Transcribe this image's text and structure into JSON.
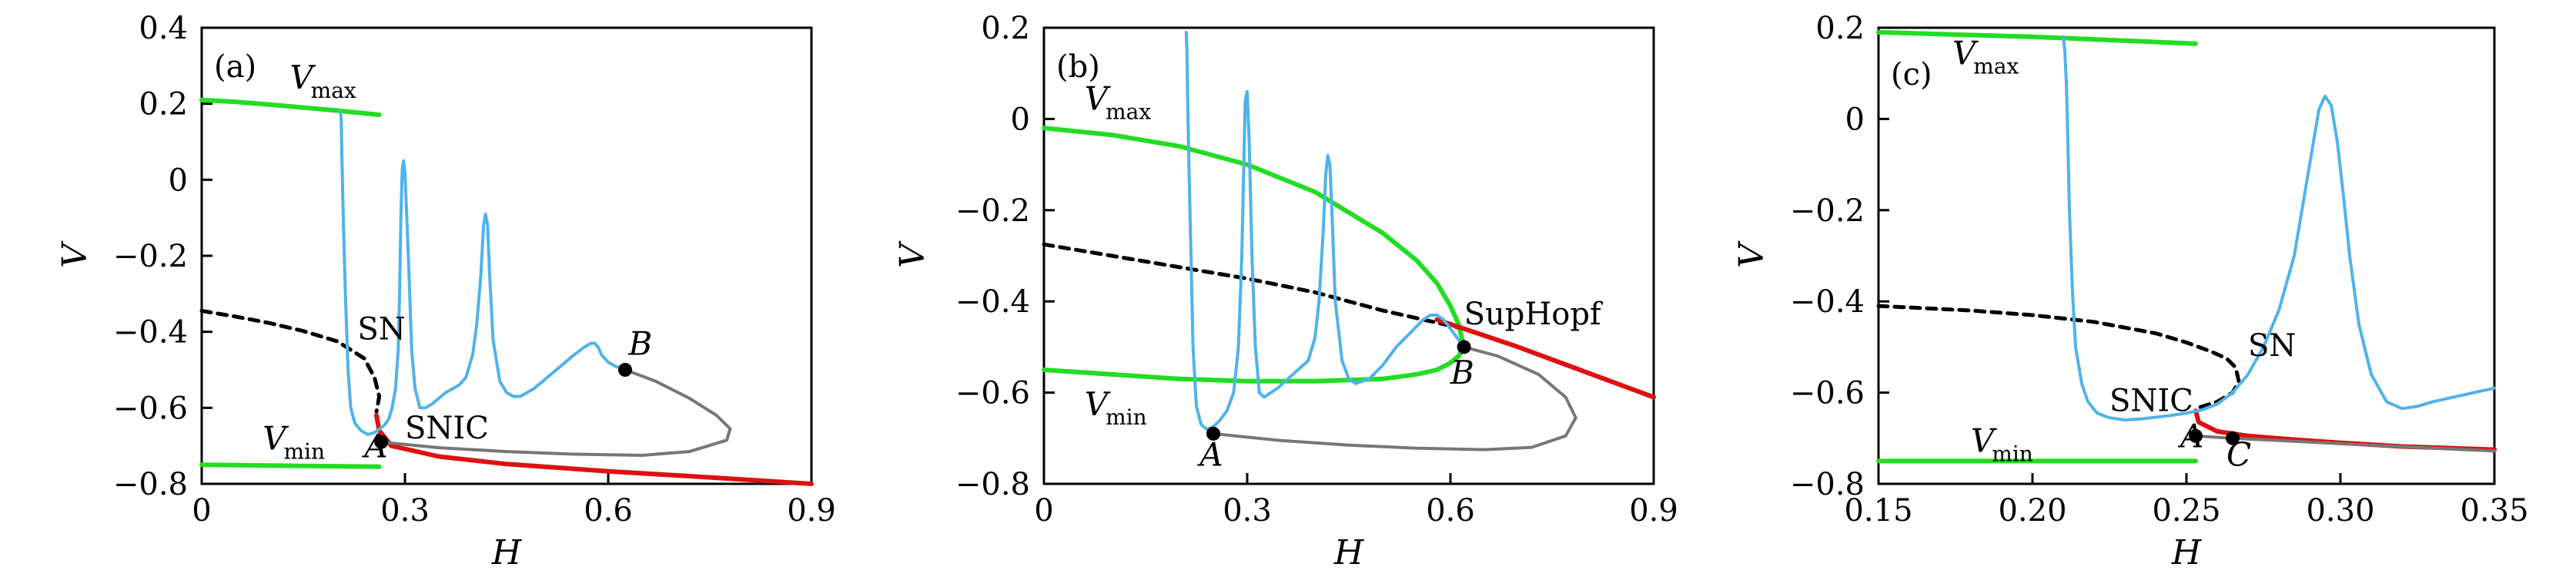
{
  "chart_data": [
    {
      "type": "line",
      "panel_label": "(a)",
      "xlabel": "H",
      "ylabel": "V",
      "xlim": [
        0,
        0.9
      ],
      "ylim": [
        -0.8,
        0.4
      ],
      "xticks": [
        "0",
        "0.3",
        "0.6",
        "0.9"
      ],
      "yticks": [
        "0.4",
        "0.2",
        "0",
        "-0.2",
        "-0.4",
        "-0.6",
        "-0.8"
      ],
      "annotations": [
        {
          "text": "V",
          "sub": "max",
          "x": 0.13,
          "y": 0.24
        },
        {
          "text": "V",
          "sub": "min",
          "x": 0.09,
          "y": -0.71
        },
        {
          "text": "SN",
          "x": 0.23,
          "y": -0.42
        },
        {
          "text": "SNIC",
          "x": 0.3,
          "y": -0.68
        },
        {
          "text": "A",
          "x": 0.24,
          "y": -0.73,
          "italic": true
        },
        {
          "text": "B",
          "x": 0.63,
          "y": -0.46,
          "italic": true
        }
      ],
      "points": [
        {
          "name": "A",
          "x": 0.265,
          "y": -0.69
        },
        {
          "name": "B",
          "x": 0.625,
          "y": -0.5
        }
      ],
      "series": [
        {
          "role": "vmax-stable",
          "color": "#22dd22",
          "width": 6,
          "dash": "",
          "x": [
            0,
            0.05,
            0.1,
            0.15,
            0.2,
            0.262
          ],
          "y": [
            0.21,
            0.205,
            0.198,
            0.19,
            0.182,
            0.171
          ]
        },
        {
          "role": "vmin-stable",
          "color": "#22dd22",
          "width": 6,
          "dash": "",
          "x": [
            0,
            0.262
          ],
          "y": [
            -0.75,
            -0.755
          ]
        },
        {
          "role": "unstable-branch",
          "color": "#000000",
          "width": 5,
          "dash": "12 9",
          "x": [
            0,
            0.05,
            0.1,
            0.15,
            0.2,
            0.24,
            0.255,
            0.262,
            0.258
          ],
          "y": [
            -0.345,
            -0.36,
            -0.377,
            -0.398,
            -0.425,
            -0.47,
            -0.52,
            -0.57,
            -0.61
          ]
        },
        {
          "role": "stable-equilibrium",
          "color": "#dd1111",
          "width": 6,
          "dash": "",
          "x": [
            0.258,
            0.262,
            0.28,
            0.35,
            0.45,
            0.6,
            0.75,
            0.9
          ],
          "y": [
            -0.62,
            -0.66,
            -0.7,
            -0.728,
            -0.748,
            -0.767,
            -0.783,
            -0.8
          ]
        },
        {
          "role": "unstable-orbit",
          "color": "#777777",
          "width": 4,
          "dash": "",
          "x": [
            0.265,
            0.35,
            0.45,
            0.55,
            0.65,
            0.72,
            0.775,
            0.78,
            0.76,
            0.72,
            0.67,
            0.625
          ],
          "y": [
            -0.69,
            -0.705,
            -0.715,
            -0.722,
            -0.725,
            -0.715,
            -0.685,
            -0.655,
            -0.62,
            -0.575,
            -0.53,
            -0.5
          ]
        },
        {
          "role": "trajectory",
          "color": "#4fb3ea",
          "width": 4,
          "dash": "",
          "x": [
            0.205,
            0.206,
            0.207,
            0.209,
            0.212,
            0.216,
            0.22,
            0.226,
            0.235,
            0.245,
            0.255,
            0.263,
            0.27,
            0.276,
            0.281,
            0.286,
            0.29,
            0.292,
            0.294,
            0.296,
            0.298,
            0.3,
            0.305,
            0.31,
            0.315,
            0.322,
            0.33,
            0.34,
            0.35,
            0.36,
            0.37,
            0.38,
            0.39,
            0.4,
            0.406,
            0.412,
            0.416,
            0.419,
            0.422,
            0.425,
            0.43,
            0.44,
            0.45,
            0.46,
            0.47,
            0.49,
            0.51,
            0.53,
            0.55,
            0.565,
            0.575,
            0.58,
            0.585,
            0.59,
            0.6,
            0.61,
            0.625
          ],
          "y": [
            0.18,
            0.15,
            0.05,
            -0.1,
            -0.3,
            -0.5,
            -0.6,
            -0.64,
            -0.66,
            -0.67,
            -0.665,
            -0.655,
            -0.645,
            -0.63,
            -0.6,
            -0.55,
            -0.45,
            -0.3,
            -0.1,
            0.03,
            0.05,
            0.02,
            -0.2,
            -0.45,
            -0.55,
            -0.6,
            -0.6,
            -0.59,
            -0.575,
            -0.56,
            -0.55,
            -0.54,
            -0.52,
            -0.46,
            -0.38,
            -0.25,
            -0.12,
            -0.09,
            -0.12,
            -0.25,
            -0.42,
            -0.53,
            -0.56,
            -0.57,
            -0.57,
            -0.55,
            -0.52,
            -0.49,
            -0.46,
            -0.44,
            -0.43,
            -0.43,
            -0.44,
            -0.46,
            -0.48,
            -0.49,
            -0.5
          ]
        }
      ]
    },
    {
      "type": "line",
      "panel_label": "(b)",
      "xlabel": "H",
      "ylabel": "V",
      "xlim": [
        0,
        0.9
      ],
      "ylim": [
        -0.8,
        0.2
      ],
      "xticks": [
        "0",
        "0.3",
        "0.6",
        "0.9"
      ],
      "yticks": [
        "0.2",
        "0",
        "-0.2",
        "-0.4",
        "-0.6",
        "-0.8"
      ],
      "annotations": [
        {
          "text": "V",
          "sub": "max",
          "x": 0.06,
          "y": 0.02
        },
        {
          "text": "V",
          "sub": "min",
          "x": 0.06,
          "y": -0.65
        },
        {
          "text": "SupHopf",
          "x": 0.62,
          "y": -0.45
        },
        {
          "text": "A",
          "x": 0.23,
          "y": -0.76,
          "italic": true
        },
        {
          "text": "B",
          "x": 0.6,
          "y": -0.58,
          "italic": true
        }
      ],
      "points": [
        {
          "name": "A",
          "x": 0.25,
          "y": -0.69
        },
        {
          "name": "B",
          "x": 0.62,
          "y": -0.5
        }
      ],
      "series": [
        {
          "role": "vmax-stable",
          "color": "#22dd22",
          "width": 6,
          "dash": "",
          "x": [
            0,
            0.1,
            0.2,
            0.3,
            0.4,
            0.5,
            0.55,
            0.58,
            0.6,
            0.612,
            0.62
          ],
          "y": [
            -0.02,
            -0.035,
            -0.06,
            -0.1,
            -0.16,
            -0.25,
            -0.31,
            -0.36,
            -0.41,
            -0.45,
            -0.5
          ]
        },
        {
          "role": "vmin-stable",
          "color": "#22dd22",
          "width": 6,
          "dash": "",
          "x": [
            0,
            0.1,
            0.2,
            0.3,
            0.4,
            0.5,
            0.55,
            0.58,
            0.6,
            0.612,
            0.62
          ],
          "y": [
            -0.55,
            -0.56,
            -0.57,
            -0.575,
            -0.575,
            -0.57,
            -0.56,
            -0.55,
            -0.535,
            -0.52,
            -0.5
          ]
        },
        {
          "role": "unstable-branch",
          "color": "#000000",
          "width": 5,
          "dash": "12 9",
          "x": [
            0,
            0.1,
            0.2,
            0.3,
            0.4,
            0.5,
            0.62
          ],
          "y": [
            -0.275,
            -0.3,
            -0.325,
            -0.35,
            -0.38,
            -0.42,
            -0.46
          ]
        },
        {
          "role": "stable-equilibrium",
          "color": "#dd1111",
          "width": 6,
          "dash": "",
          "x": [
            0.58,
            0.62,
            0.7,
            0.8,
            0.9
          ],
          "y": [
            -0.44,
            -0.46,
            -0.5,
            -0.555,
            -0.61
          ]
        },
        {
          "role": "unstable-orbit",
          "color": "#777777",
          "width": 4,
          "dash": "",
          "x": [
            0.25,
            0.35,
            0.45,
            0.55,
            0.65,
            0.72,
            0.77,
            0.785,
            0.77,
            0.73,
            0.67,
            0.62
          ],
          "y": [
            -0.69,
            -0.705,
            -0.715,
            -0.722,
            -0.725,
            -0.72,
            -0.695,
            -0.655,
            -0.61,
            -0.56,
            -0.52,
            -0.5
          ]
        },
        {
          "role": "trajectory",
          "color": "#4fb3ea",
          "width": 4,
          "dash": "",
          "x": [
            0.21,
            0.211,
            0.212,
            0.214,
            0.217,
            0.22,
            0.225,
            0.232,
            0.24,
            0.25,
            0.26,
            0.27,
            0.28,
            0.287,
            0.292,
            0.295,
            0.297,
            0.3,
            0.303,
            0.307,
            0.312,
            0.318,
            0.325,
            0.335,
            0.345,
            0.36,
            0.375,
            0.39,
            0.4,
            0.406,
            0.412,
            0.416,
            0.419,
            0.422,
            0.425,
            0.43,
            0.44,
            0.45,
            0.46,
            0.48,
            0.5,
            0.52,
            0.54,
            0.56,
            0.57,
            0.58,
            0.59,
            0.6,
            0.61,
            0.62
          ],
          "y": [
            0.19,
            0.15,
            0.05,
            -0.1,
            -0.3,
            -0.5,
            -0.63,
            -0.67,
            -0.68,
            -0.675,
            -0.66,
            -0.64,
            -0.6,
            -0.5,
            -0.3,
            -0.1,
            0.04,
            0.06,
            -0.05,
            -0.3,
            -0.5,
            -0.6,
            -0.61,
            -0.6,
            -0.59,
            -0.57,
            -0.55,
            -0.53,
            -0.48,
            -0.4,
            -0.25,
            -0.12,
            -0.08,
            -0.1,
            -0.2,
            -0.4,
            -0.53,
            -0.57,
            -0.58,
            -0.57,
            -0.54,
            -0.5,
            -0.47,
            -0.44,
            -0.43,
            -0.43,
            -0.44,
            -0.46,
            -0.48,
            -0.5
          ]
        }
      ]
    },
    {
      "type": "line",
      "panel_label": "(c)",
      "xlabel": "H",
      "ylabel": "V",
      "xlim": [
        0.15,
        0.35
      ],
      "ylim": [
        -0.8,
        0.2
      ],
      "xticks": [
        "0.15",
        "0.20",
        "0.25",
        "0.30",
        "0.35"
      ],
      "yticks": [
        "0.2",
        "0",
        "-0.2",
        "-0.4",
        "-0.6",
        "-0.8"
      ],
      "annotations": [
        {
          "text": "V",
          "sub": "max",
          "x": 0.174,
          "y": 0.12
        },
        {
          "text": "V",
          "sub": "min",
          "x": 0.18,
          "y": -0.73
        },
        {
          "text": "SN",
          "x": 0.27,
          "y": -0.52
        },
        {
          "text": "SNIC",
          "x": 0.225,
          "y": -0.64
        },
        {
          "text": "A",
          "x": 0.248,
          "y": -0.72,
          "italic": true
        },
        {
          "text": "C",
          "x": 0.263,
          "y": -0.76,
          "italic": true
        }
      ],
      "points": [
        {
          "name": "A",
          "x": 0.253,
          "y": -0.695
        },
        {
          "name": "C",
          "x": 0.265,
          "y": -0.7
        }
      ],
      "series": [
        {
          "role": "vmax-stable",
          "color": "#22dd22",
          "width": 6,
          "dash": "",
          "x": [
            0.15,
            0.2,
            0.253
          ],
          "y": [
            0.19,
            0.18,
            0.165
          ]
        },
        {
          "role": "vmin-stable",
          "color": "#22dd22",
          "width": 6,
          "dash": "",
          "x": [
            0.15,
            0.253
          ],
          "y": [
            -0.75,
            -0.75
          ]
        },
        {
          "role": "unstable-branch",
          "color": "#000000",
          "width": 5,
          "dash": "12 9",
          "x": [
            0.15,
            0.18,
            0.2,
            0.22,
            0.24,
            0.25,
            0.258,
            0.263,
            0.266,
            0.267,
            0.265,
            0.26,
            0.253
          ],
          "y": [
            -0.41,
            -0.42,
            -0.43,
            -0.445,
            -0.47,
            -0.49,
            -0.51,
            -0.525,
            -0.545,
            -0.575,
            -0.6,
            -0.62,
            -0.635
          ]
        },
        {
          "role": "stable-equilibrium",
          "color": "#dd1111",
          "width": 6,
          "dash": "",
          "x": [
            0.253,
            0.254,
            0.26,
            0.27,
            0.285,
            0.3,
            0.32,
            0.35
          ],
          "y": [
            -0.64,
            -0.665,
            -0.685,
            -0.695,
            -0.703,
            -0.71,
            -0.718,
            -0.725
          ]
        },
        {
          "role": "unstable-orbit",
          "color": "#777777",
          "width": 4,
          "dash": "",
          "x": [
            0.253,
            0.26,
            0.265,
            0.28,
            0.3,
            0.35
          ],
          "y": [
            -0.695,
            -0.698,
            -0.7,
            -0.705,
            -0.712,
            -0.728
          ]
        },
        {
          "role": "trajectory",
          "color": "#4fb3ea",
          "width": 4,
          "dash": "",
          "x": [
            0.21,
            0.2105,
            0.211,
            0.2115,
            0.212,
            0.213,
            0.214,
            0.216,
            0.218,
            0.221,
            0.225,
            0.23,
            0.235,
            0.24,
            0.245,
            0.25,
            0.255,
            0.26,
            0.265,
            0.27,
            0.275,
            0.28,
            0.285,
            0.288,
            0.291,
            0.293,
            0.295,
            0.297,
            0.299,
            0.301,
            0.303,
            0.306,
            0.31,
            0.315,
            0.32,
            0.325,
            0.33,
            0.34,
            0.35
          ],
          "y": [
            0.18,
            0.15,
            0.08,
            -0.05,
            -0.2,
            -0.38,
            -0.5,
            -0.58,
            -0.62,
            -0.645,
            -0.655,
            -0.66,
            -0.658,
            -0.654,
            -0.65,
            -0.645,
            -0.638,
            -0.625,
            -0.6,
            -0.56,
            -0.5,
            -0.42,
            -0.3,
            -0.18,
            -0.06,
            0.02,
            0.05,
            0.03,
            -0.05,
            -0.17,
            -0.3,
            -0.45,
            -0.56,
            -0.62,
            -0.635,
            -0.63,
            -0.62,
            -0.605,
            -0.59
          ]
        }
      ]
    }
  ]
}
